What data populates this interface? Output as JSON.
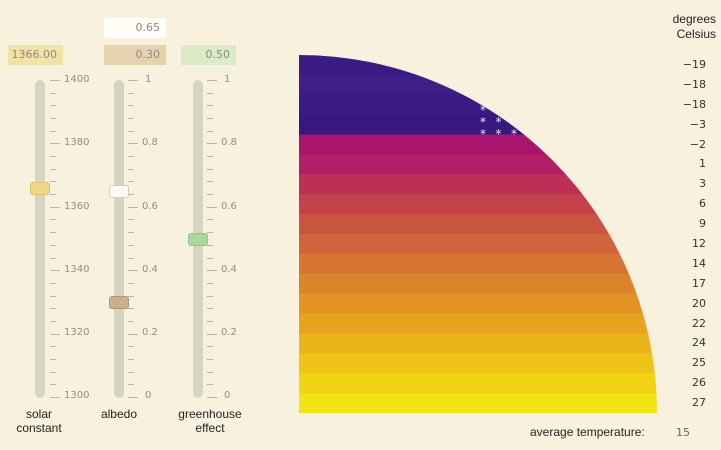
{
  "sliders": [
    {
      "id": "solar",
      "label1": "solar",
      "label2": "constant",
      "value_display": "1366.00",
      "value": 1366,
      "min": 1300,
      "max": 1400,
      "ticks": [
        "1400",
        "1380",
        "1360",
        "1340",
        "1320",
        "1300"
      ],
      "box_color": "#f3e2a6",
      "thumb_color": "#efd48a"
    },
    {
      "id": "albedo",
      "label1": "albedo",
      "label2": "",
      "value_display": "0.30",
      "value": 0.3,
      "min": 0,
      "max": 1,
      "secondary_display": "0.65",
      "secondary_value": 0.65,
      "ticks": [
        "1",
        "0.8",
        "0.6",
        "0.4",
        "0.2",
        "0"
      ],
      "box_color": "#e6d2ad",
      "thumb_color": "#c9b08a"
    },
    {
      "id": "greenhouse",
      "label1": "greenhouse",
      "label2": "effect",
      "value_display": "0.50",
      "value": 0.5,
      "min": 0,
      "max": 1,
      "ticks": [
        "1",
        "0.8",
        "0.6",
        "0.4",
        "0.2",
        "0"
      ],
      "box_color": "#dcebc7",
      "thumb_color": "#a8d89a"
    }
  ],
  "temperature": {
    "unit_line1": "degrees",
    "unit_line2": "Celsius",
    "labels": [
      "−19",
      "−18",
      "−18",
      "−3",
      "−2",
      "1",
      "3",
      "6",
      "9",
      "12",
      "14",
      "17",
      "20",
      "22",
      "24",
      "25",
      "26",
      "27"
    ],
    "frozen_bands": 4,
    "average_label": "average temperature:",
    "average_value": "15"
  }
}
